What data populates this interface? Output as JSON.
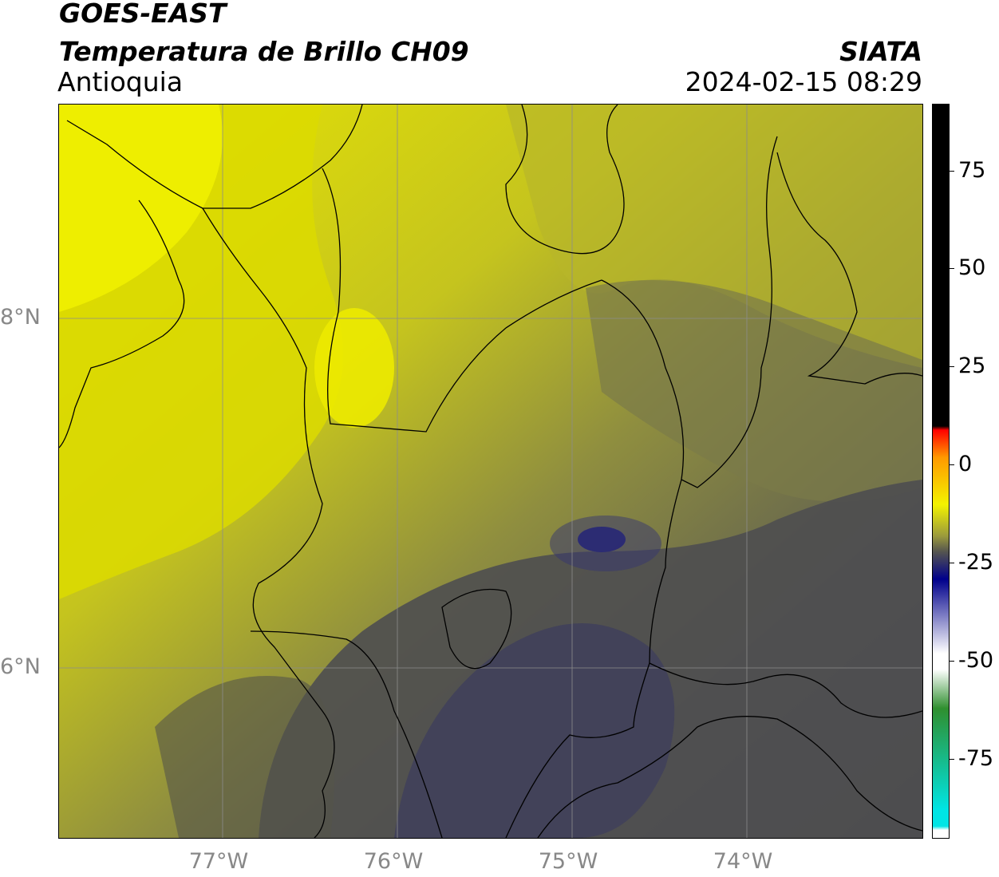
{
  "title": {
    "line1": "GOES-EAST",
    "line2": "Temperatura de Brillo CH09",
    "region": "Antioquia",
    "org": "SIATA",
    "datetime": "2024-02-15 08:29"
  },
  "map": {
    "lon_range": [
      -77.93,
      -72.99
    ],
    "lat_range": [
      5.03,
      9.22
    ],
    "lon_ticks": [
      {
        "lon": -77,
        "label": "77°W"
      },
      {
        "lon": -76,
        "label": "76°W"
      },
      {
        "lon": -75,
        "label": "75°W"
      },
      {
        "lon": -74,
        "label": "74°W"
      }
    ],
    "lat_ticks": [
      {
        "lat": 8,
        "label": "8°N"
      },
      {
        "lat": 6,
        "label": "6°N"
      }
    ],
    "grid": true
  },
  "colorbar": {
    "range": [
      -95,
      92
    ],
    "ticks": [
      {
        "value": 75,
        "label": "75"
      },
      {
        "value": 50,
        "label": "50"
      },
      {
        "value": 25,
        "label": "25"
      },
      {
        "value": 0,
        "label": "0"
      },
      {
        "value": -25,
        "label": "-25"
      },
      {
        "value": -50,
        "label": "-50"
      },
      {
        "value": -75,
        "label": "-75"
      }
    ],
    "colors": {
      "black": "#000000",
      "red": "#ff0000",
      "orange": "#ff9900",
      "yellow": "#f3f300",
      "olive": "#9b9a3c",
      "gray": "#55554f",
      "navy": "#00008b",
      "white": "#ffffff",
      "green": "#2f8f2f",
      "cyan": "#00e5e5"
    }
  }
}
